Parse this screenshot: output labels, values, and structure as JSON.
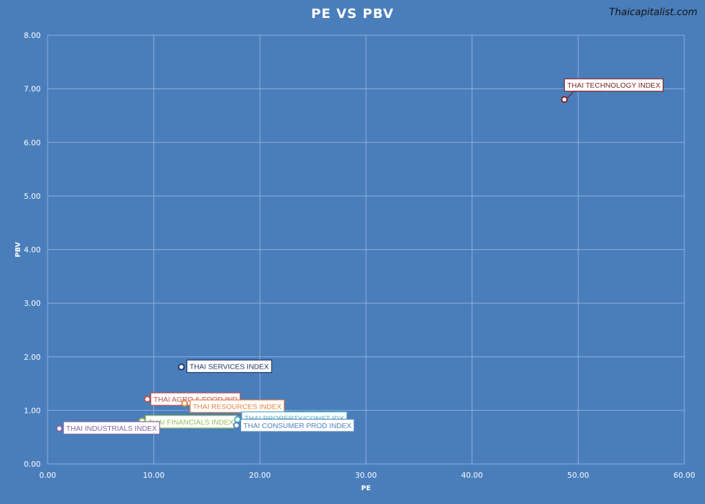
{
  "header": {
    "title": "PE VS PBV",
    "watermark": "Thaicapitalist.com"
  },
  "colors": {
    "background": "#4a7ebb",
    "grid": "#8fb0dc",
    "axis_text": "#ffffff"
  },
  "chart_data": {
    "type": "scatter",
    "title": "PE VS PBV",
    "xlabel": "PE",
    "ylabel": "PBV",
    "xlim": [
      0,
      60
    ],
    "ylim": [
      0,
      8
    ],
    "x_ticks": [
      "0.00",
      "10.00",
      "20.00",
      "30.00",
      "40.00",
      "50.00",
      "60.00"
    ],
    "y_ticks": [
      "0.00",
      "1.00",
      "2.00",
      "3.00",
      "4.00",
      "5.00",
      "6.00",
      "7.00",
      "8.00"
    ],
    "grid": true,
    "points": [
      {
        "name": "THAI TECHNOLOGY INDEX",
        "x": 48.7,
        "y": 6.8,
        "color": "#7b2020"
      },
      {
        "name": "THAI SERVICES INDEX",
        "x": 12.6,
        "y": 1.81,
        "color": "#1f3864"
      },
      {
        "name": "THAI AGRO & FOOD IND",
        "x": 9.4,
        "y": 1.21,
        "color": "#c0504d"
      },
      {
        "name": "THAI RESOURCES INDEX",
        "x": 12.9,
        "y": 1.13,
        "color": "#e6823a"
      },
      {
        "name": "THAI FINANCIALS INDEX",
        "x": 8.9,
        "y": 0.8,
        "color": "#9bbb59"
      },
      {
        "name": "THAI PROPERTY/CONST IDX",
        "x": 17.9,
        "y": 0.83,
        "color": "#4bacc6"
      },
      {
        "name": "THAI CONSUMER PROD INDEX",
        "x": 17.8,
        "y": 0.72,
        "color": "#4f81bd"
      },
      {
        "name": "THAI INDUSTRIALS INDEX",
        "x": 1.1,
        "y": 0.66,
        "color": "#8064a2"
      }
    ]
  }
}
